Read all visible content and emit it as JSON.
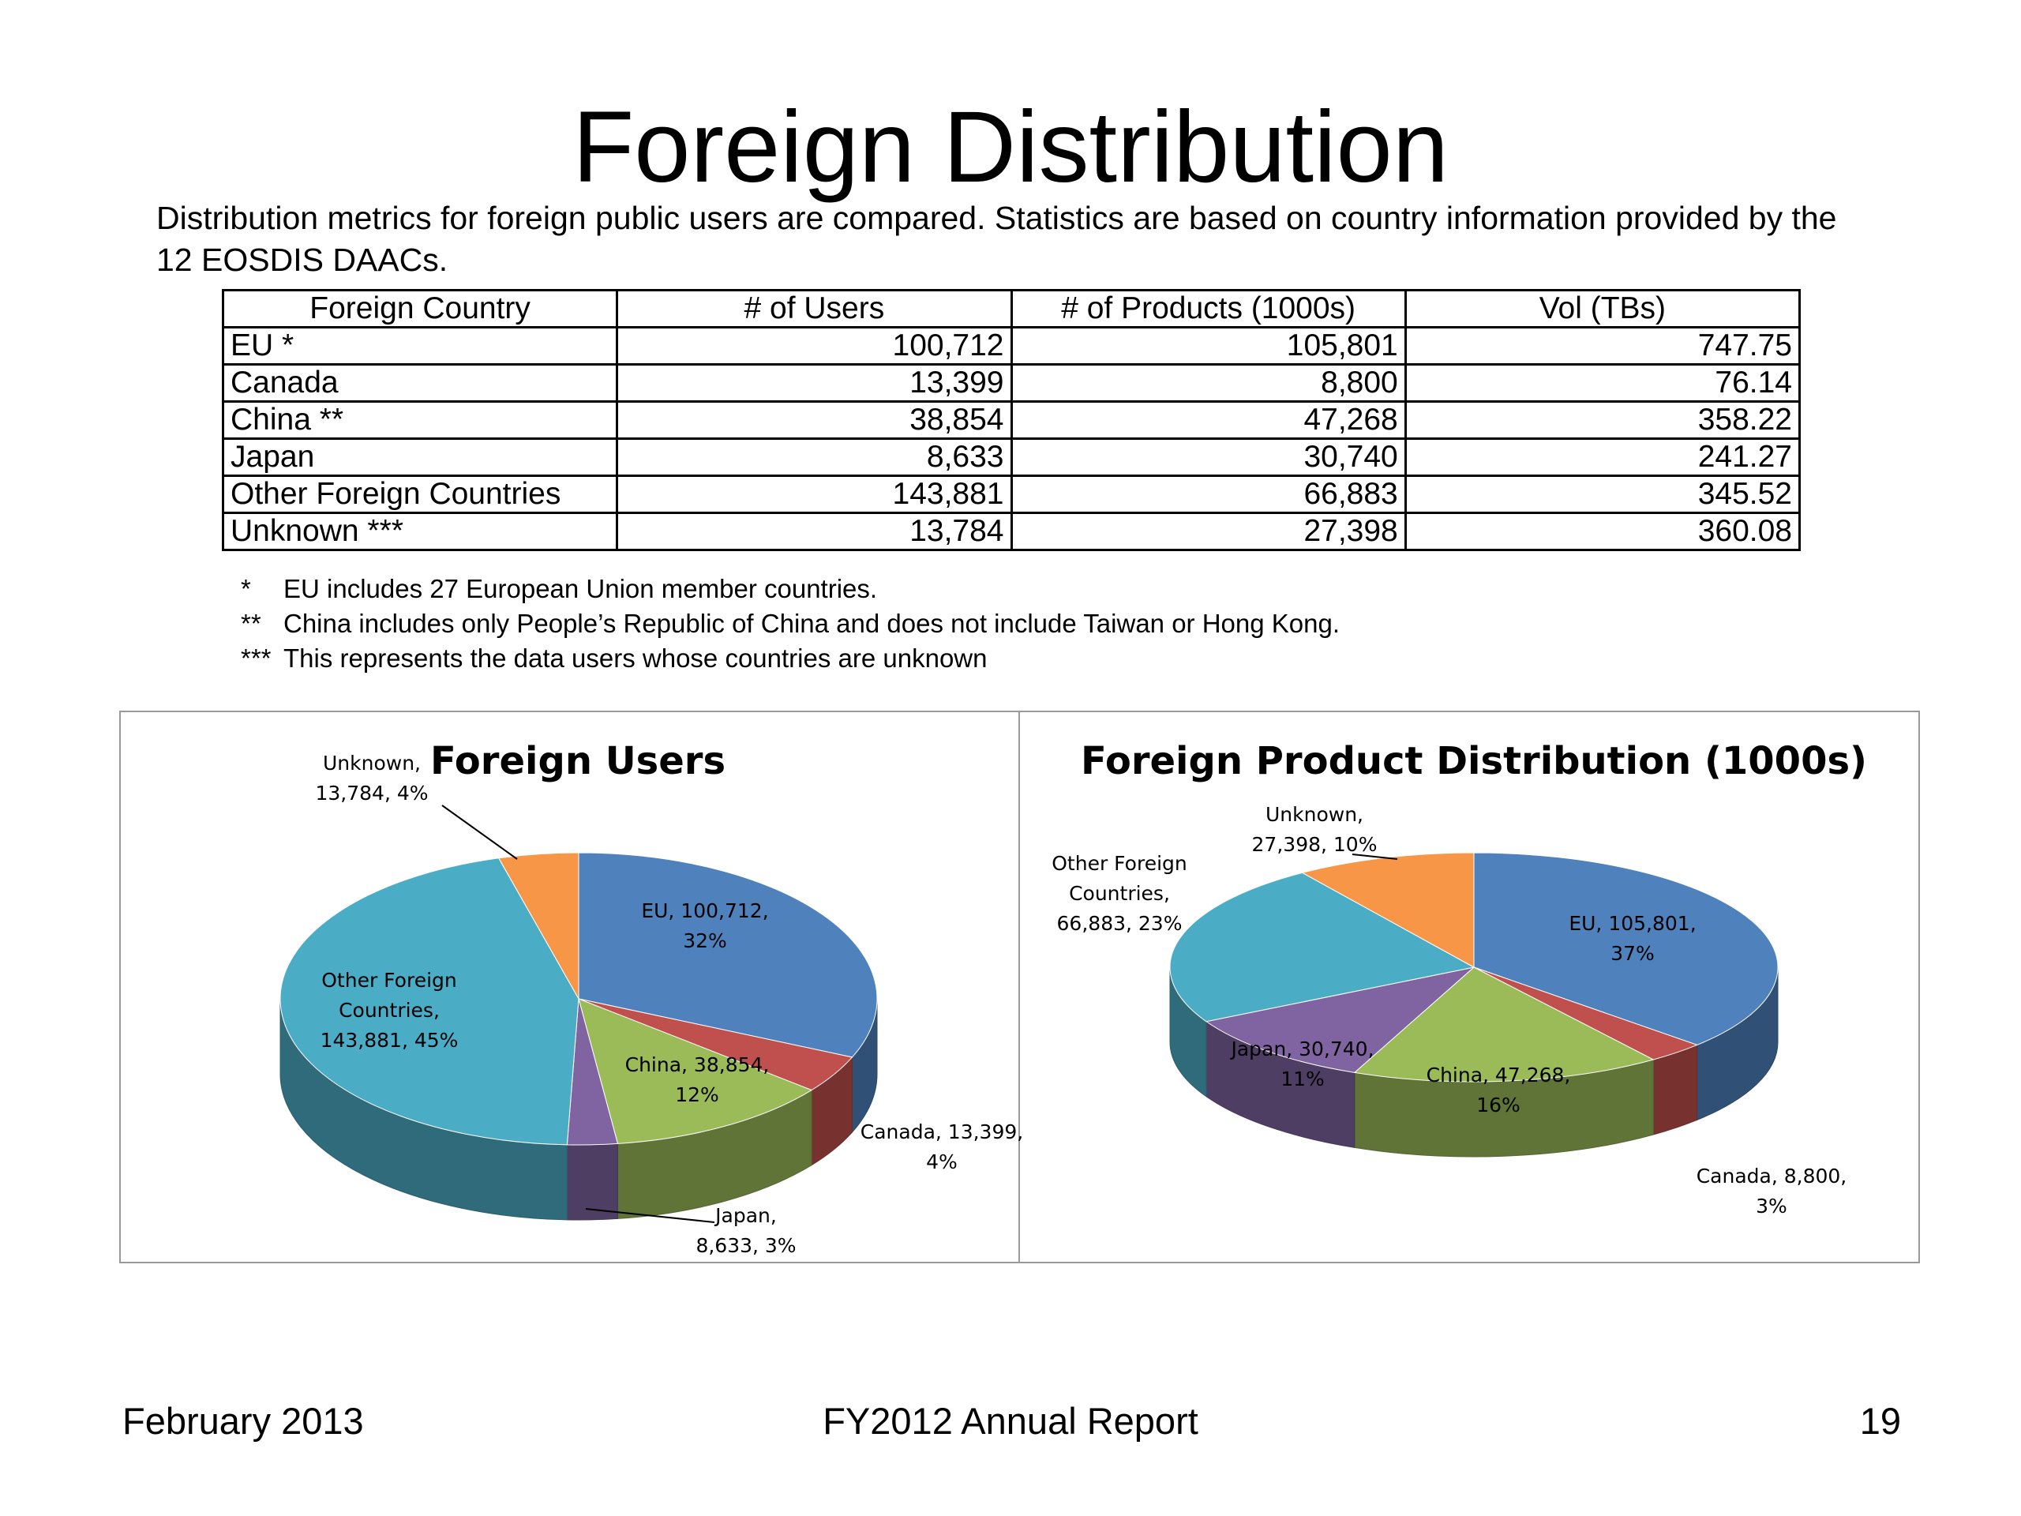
{
  "title": "Foreign Distribution",
  "intro": "Distribution metrics for foreign public users are compared. Statistics are based on country information provided by the 12 EOSDIS DAACs.",
  "table": {
    "headers": [
      "Foreign Country",
      "# of Users",
      "# of Products (1000s)",
      "Vol (TBs)"
    ],
    "rows": [
      [
        "EU *",
        "100,712",
        "105,801",
        "747.75"
      ],
      [
        "Canada",
        "13,399",
        "8,800",
        "76.14"
      ],
      [
        "China **",
        "38,854",
        "47,268",
        "358.22"
      ],
      [
        "Japan",
        "8,633",
        "30,740",
        "241.27"
      ],
      [
        "Other Foreign Countries",
        "143,881",
        "66,883",
        "345.52"
      ],
      [
        "Unknown ***",
        "13,784",
        "27,398",
        "360.08"
      ]
    ]
  },
  "footnotes": [
    {
      "mark": "*",
      "text": "EU includes 27 European Union member countries."
    },
    {
      "mark": "**",
      "text": "China includes only People’s Republic of China and does not include Taiwan or Hong Kong."
    },
    {
      "mark": "***",
      "text": "This represents the data users whose countries are unknown"
    }
  ],
  "colors": {
    "EU": "#4f81bd",
    "Canada": "#c0504d",
    "China": "#9bbb59",
    "Japan": "#8064a2",
    "Other Foreign Countries": "#4bacc6",
    "Unknown": "#f79646"
  },
  "chart_data": [
    {
      "type": "pie",
      "title": "Foreign Users",
      "categories": [
        "EU",
        "Canada",
        "China",
        "Japan",
        "Other Foreign Countries",
        "Unknown"
      ],
      "values": [
        100712,
        13399,
        38854,
        8633,
        143881,
        13784
      ],
      "data_labels": [
        [
          "EU, 100,712,",
          "32%"
        ],
        [
          "Canada, 13,399,",
          "4%"
        ],
        [
          "China, 38,854,",
          "12%"
        ],
        [
          "Japan,",
          "8,633, 3%"
        ],
        [
          "Other Foreign",
          "Countries,",
          "143,881, 45%"
        ],
        [
          "Unknown,",
          "13,784, 4%"
        ]
      ]
    },
    {
      "type": "pie",
      "title": "Foreign Product Distribution (1000s)",
      "categories": [
        "EU",
        "Canada",
        "China",
        "Japan",
        "Other Foreign Countries",
        "Unknown"
      ],
      "values": [
        105801,
        8800,
        47268,
        30740,
        66883,
        27398
      ],
      "data_labels": [
        [
          "EU, 105,801,",
          "37%"
        ],
        [
          "Canada, 8,800,",
          "3%"
        ],
        [
          "China, 47,268,",
          "16%"
        ],
        [
          "Japan, 30,740,",
          "11%"
        ],
        [
          "Other Foreign",
          "Countries,",
          "66,883, 23%"
        ],
        [
          "Unknown,",
          "27,398, 10%"
        ]
      ]
    }
  ],
  "footer": {
    "date": "February 2013",
    "report": "FY2012 Annual Report",
    "page": "19"
  }
}
